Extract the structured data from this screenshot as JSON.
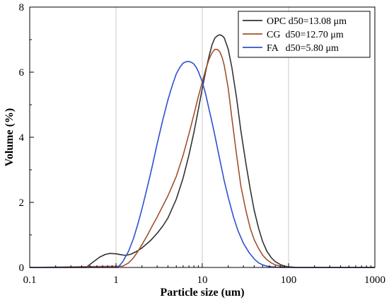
{
  "chart_data": {
    "type": "line",
    "xlabel": "Particle size (um)",
    "ylabel": "Volume (%)",
    "xscale": "log",
    "xlim": [
      0.1,
      1000
    ],
    "ylim": [
      0,
      8
    ],
    "xticks": [
      0.1,
      1,
      10,
      100,
      1000
    ],
    "xtick_labels": [
      "0.1",
      "1",
      "10",
      "100",
      "1000"
    ],
    "yticks": [
      0,
      2,
      4,
      6,
      8
    ],
    "ytick_labels": [
      "0",
      "2",
      "4",
      "6",
      "8"
    ],
    "grid": "vertical-major",
    "legend_position": "top-right",
    "series": [
      {
        "name": "OPC d50=13.08 μm",
        "color": "#333333",
        "x": [
          0.45,
          0.55,
          0.65,
          0.75,
          0.85,
          1.0,
          1.15,
          1.3,
          1.5,
          1.75,
          2.0,
          2.5,
          3.0,
          3.5,
          4.0,
          5.0,
          6.0,
          7.0,
          8.0,
          9.0,
          10.0,
          11.0,
          12.0,
          13.0,
          14.0,
          15.0,
          16.0,
          17.0,
          18.0,
          20.0,
          22.0,
          25.0,
          28.0,
          32.0,
          36.0,
          40.0,
          45.0,
          50.0,
          56.0,
          63.0,
          70.0,
          80.0,
          90.0,
          100.0,
          112.0,
          122.0
        ],
        "y": [
          0.0,
          0.18,
          0.32,
          0.4,
          0.43,
          0.42,
          0.39,
          0.37,
          0.41,
          0.5,
          0.6,
          0.82,
          1.05,
          1.28,
          1.52,
          2.1,
          2.75,
          3.45,
          4.15,
          4.85,
          5.5,
          6.05,
          6.5,
          6.85,
          7.05,
          7.12,
          7.15,
          7.12,
          7.05,
          6.7,
          6.15,
          5.2,
          4.2,
          3.2,
          2.4,
          1.75,
          1.2,
          0.8,
          0.5,
          0.3,
          0.18,
          0.09,
          0.04,
          0.02,
          0.01,
          0.0
        ]
      },
      {
        "name": "CG d50=12.70 μm",
        "color": "#a0522d",
        "x": [
          1.2,
          1.4,
          1.6,
          1.8,
          2.0,
          2.3,
          2.6,
          3.0,
          3.5,
          4.0,
          5.0,
          6.0,
          7.0,
          8.0,
          9.0,
          10.0,
          11.0,
          12.0,
          13.0,
          14.0,
          15.0,
          16.0,
          17.0,
          18.0,
          20.0,
          22.0,
          25.0,
          28.0,
          32.0,
          36.0,
          40.0,
          45.0,
          50.0,
          56.0,
          63.0,
          70.0,
          80.0,
          90.0,
          100.0,
          112.0
        ],
        "y": [
          0.04,
          0.14,
          0.3,
          0.5,
          0.7,
          0.98,
          1.25,
          1.55,
          1.9,
          2.2,
          2.8,
          3.45,
          4.1,
          4.7,
          5.25,
          5.7,
          6.1,
          6.4,
          6.6,
          6.7,
          6.7,
          6.62,
          6.45,
          6.2,
          5.5,
          4.6,
          3.45,
          2.5,
          1.75,
          1.2,
          0.85,
          0.58,
          0.38,
          0.24,
          0.14,
          0.08,
          0.04,
          0.02,
          0.01,
          0.0
        ]
      },
      {
        "name": "FA d50=5.80 μm",
        "color": "#3050d0",
        "x": [
          1.05,
          1.2,
          1.4,
          1.6,
          1.8,
          2.0,
          2.3,
          2.6,
          3.0,
          3.5,
          4.0,
          4.5,
          5.0,
          5.5,
          6.0,
          6.5,
          7.0,
          7.5,
          8.0,
          8.5,
          9.0,
          10.0,
          11.0,
          12.0,
          13.0,
          14.0,
          16.0,
          18.0,
          20.0,
          23.0,
          26.0,
          30.0,
          35.0,
          40.0,
          45.0,
          50.0,
          56.0,
          63.0,
          70.0,
          80.0
        ],
        "y": [
          0.0,
          0.18,
          0.5,
          0.9,
          1.35,
          1.8,
          2.45,
          3.05,
          3.8,
          4.55,
          5.15,
          5.6,
          5.95,
          6.15,
          6.28,
          6.32,
          6.33,
          6.3,
          6.25,
          6.15,
          6.02,
          5.7,
          5.3,
          4.85,
          4.45,
          4.05,
          3.3,
          2.65,
          2.15,
          1.55,
          1.12,
          0.74,
          0.45,
          0.26,
          0.14,
          0.08,
          0.04,
          0.02,
          0.01,
          0.0
        ]
      }
    ],
    "legend": [
      {
        "label": "OPC d50=13.08 μm"
      },
      {
        "label": "CG  d50=12.70 μm"
      },
      {
        "label": "FA   d50=5.80 μm"
      }
    ]
  }
}
